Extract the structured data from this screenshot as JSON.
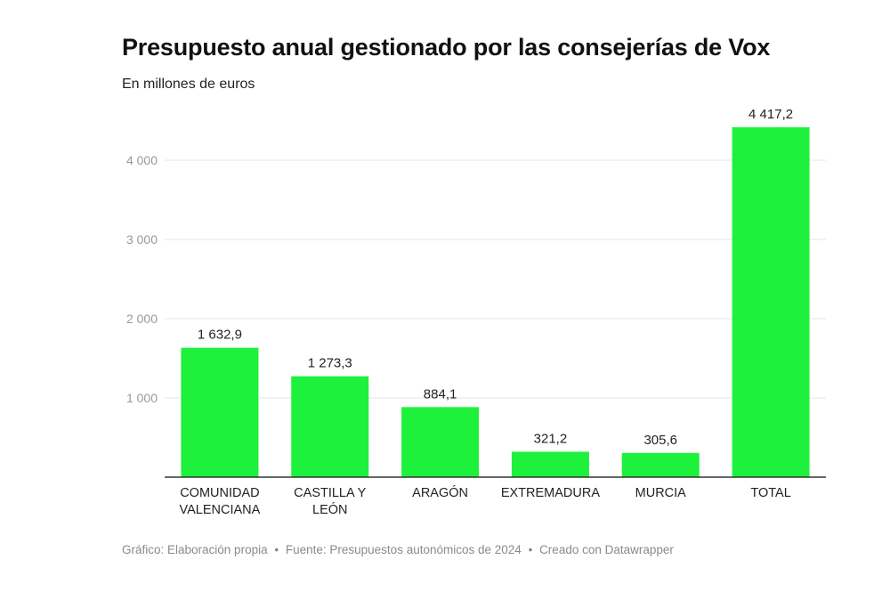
{
  "title": "Presupuesto anual gestionado por las consejerías de Vox",
  "subtitle": "En millones de euros",
  "footer": {
    "graphic": "Gráfico: Elaboración propia",
    "source": "Fuente: Presupuestos autonómicos de 2024",
    "credit": "Creado con Datawrapper",
    "separator": "•"
  },
  "colors": {
    "bar": "#1ef13b",
    "grid": "#e6e6e6",
    "axis": "#333333",
    "tick_text": "#9a9a9a",
    "label_text": "#222222"
  },
  "chart_data": {
    "type": "bar",
    "categories": [
      [
        "COMUNIDAD",
        "VALENCIANA"
      ],
      [
        "CASTILLA Y",
        "LEÓN"
      ],
      [
        "ARAGÓN"
      ],
      [
        "EXTREMADURA"
      ],
      [
        "MURCIA"
      ],
      [
        "TOTAL"
      ]
    ],
    "values": [
      1632.9,
      1273.3,
      884.1,
      321.2,
      305.6,
      4417.2
    ],
    "value_labels": [
      "1 632,9",
      "1 273,3",
      "884,1",
      "321,2",
      "305,6",
      "4 417,2"
    ],
    "yticks": [
      1000,
      2000,
      3000,
      4000
    ],
    "ytick_labels": [
      "1 000",
      "2 000",
      "3 000",
      "4 000"
    ],
    "ylim": [
      0,
      4600
    ],
    "grid": true,
    "legend": "none"
  }
}
